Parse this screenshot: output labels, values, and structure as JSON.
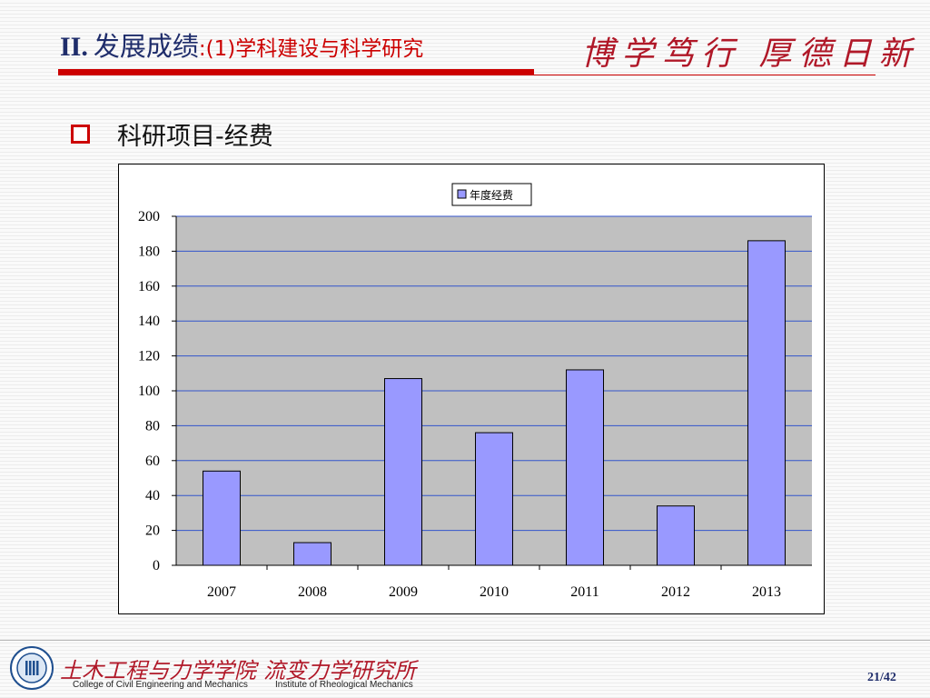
{
  "slide": {
    "title_roman": "II.",
    "title_main": "发展成绩",
    "title_sub": ":(1)学科建设与科学研究",
    "motto": "博学笃行 厚德日新",
    "bullet": "科研项目-经费",
    "college_cn": "土木工程与力学学院",
    "college_en": "College of Civil Engineering and Mechanics",
    "institute_cn": "流变力学研究所",
    "institute_en": "Institute of Rheological Mechanics",
    "page": "21/42"
  },
  "colors": {
    "title": "#1f2d6b",
    "accent": "#cc0000",
    "bar_fill": "#9999ff",
    "plot_bg": "#c0c0c0",
    "gridline": "#3355cc"
  },
  "chart_data": {
    "type": "bar",
    "categories": [
      "2007",
      "2008",
      "2009",
      "2010",
      "2011",
      "2012",
      "2013"
    ],
    "series": [
      {
        "name": "年度经费",
        "values": [
          54,
          13,
          107,
          76,
          112,
          34,
          186
        ]
      }
    ],
    "title": "",
    "xlabel": "",
    "ylabel": "",
    "ylim": [
      0,
      200
    ],
    "yticks": [
      0,
      20,
      40,
      60,
      80,
      100,
      120,
      140,
      160,
      180,
      200
    ],
    "grid": true,
    "legend_position": "top-center"
  }
}
